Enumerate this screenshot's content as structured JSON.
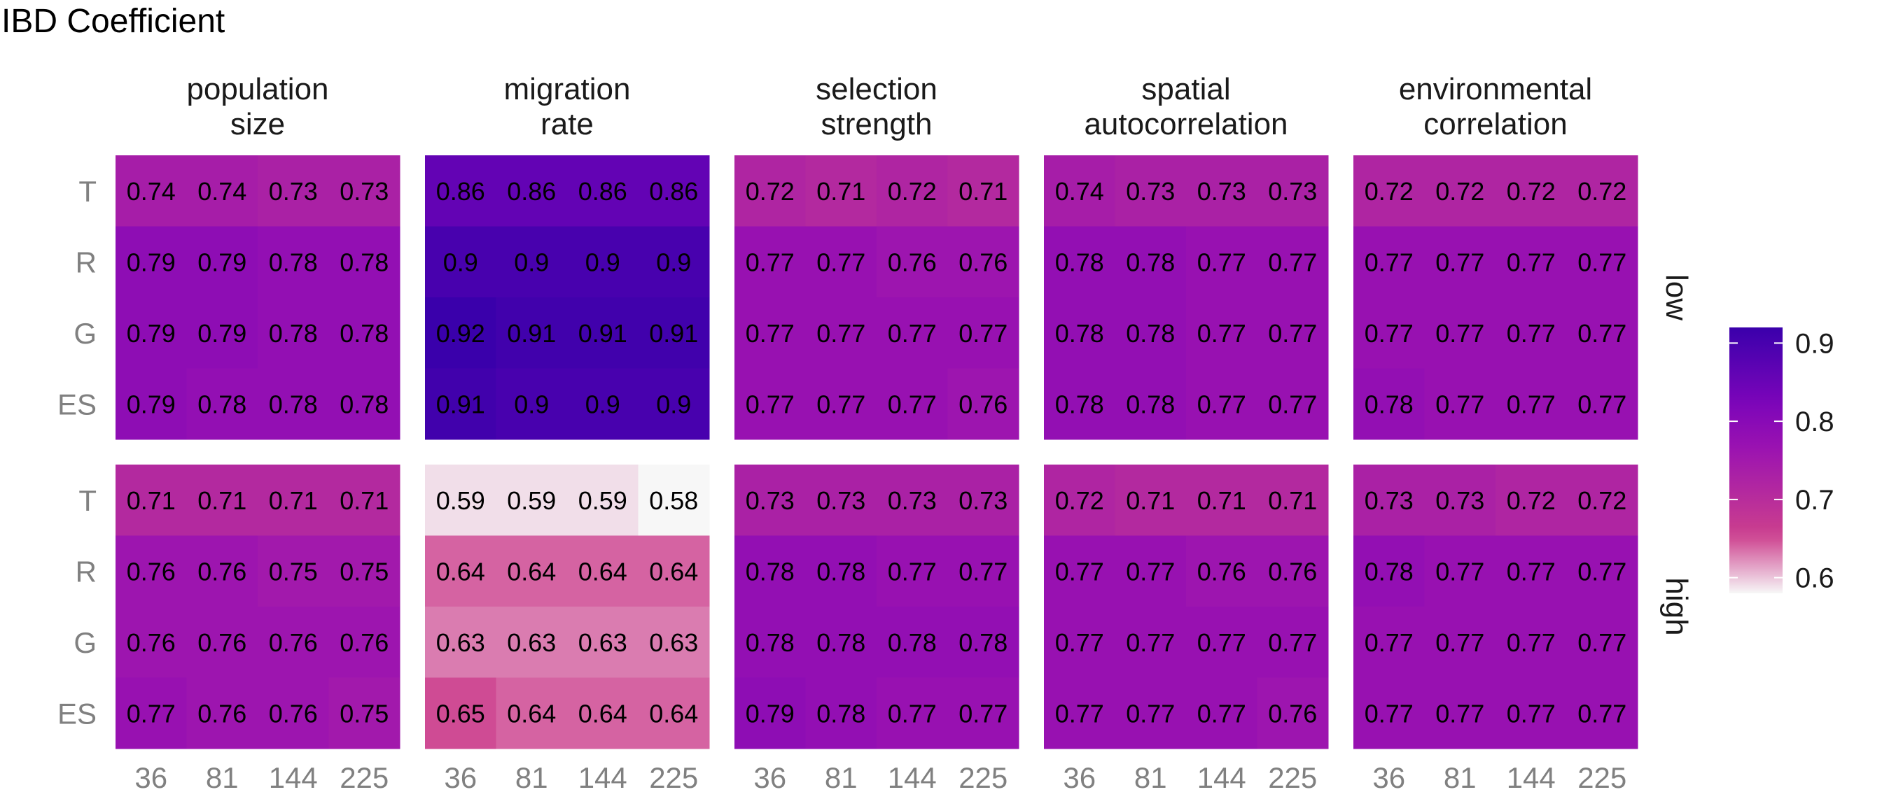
{
  "chart_data": {
    "type": "heatmap",
    "title": "IBD Coefficient",
    "column_facets": [
      [
        "population",
        "size"
      ],
      [
        "migration",
        "rate"
      ],
      [
        "selection",
        "strength"
      ],
      [
        "spatial",
        "autocorrelation"
      ],
      [
        "environmental",
        "correlation"
      ]
    ],
    "row_facets": [
      "low",
      "high"
    ],
    "x_categories": [
      "36",
      "81",
      "144",
      "225"
    ],
    "y_categories": [
      "T",
      "R",
      "G",
      "ES"
    ],
    "color_scale": {
      "min": 0.58,
      "max": 0.92,
      "ticks": [
        0.9,
        0.8,
        0.7,
        0.6
      ],
      "tick_labels": [
        "0.9",
        "0.8",
        "0.7",
        "0.6"
      ],
      "colors": [
        "#f7f7f7",
        "#cc3f8d",
        "#9a12b1",
        "#7b05b9",
        "#3a00ab"
      ]
    },
    "panels": [
      [
        {
          "values": [
            [
              0.74,
              0.74,
              0.73,
              0.73
            ],
            [
              0.79,
              0.79,
              0.78,
              0.78
            ],
            [
              0.79,
              0.79,
              0.78,
              0.78
            ],
            [
              0.79,
              0.78,
              0.78,
              0.78
            ]
          ],
          "labels": [
            [
              "0.74",
              "0.74",
              "0.73",
              "0.73"
            ],
            [
              "0.79",
              "0.79",
              "0.78",
              "0.78"
            ],
            [
              "0.79",
              "0.79",
              "0.78",
              "0.78"
            ],
            [
              "0.79",
              "0.78",
              "0.78",
              "0.78"
            ]
          ]
        },
        {
          "values": [
            [
              0.86,
              0.86,
              0.86,
              0.86
            ],
            [
              0.9,
              0.9,
              0.9,
              0.9
            ],
            [
              0.92,
              0.91,
              0.91,
              0.91
            ],
            [
              0.91,
              0.9,
              0.9,
              0.9
            ]
          ],
          "labels": [
            [
              "0.86",
              "0.86",
              "0.86",
              "0.86"
            ],
            [
              "0.9",
              "0.9",
              "0.9",
              "0.9"
            ],
            [
              "0.92",
              "0.91",
              "0.91",
              "0.91"
            ],
            [
              "0.91",
              "0.9",
              "0.9",
              "0.9"
            ]
          ]
        },
        {
          "values": [
            [
              0.72,
              0.71,
              0.72,
              0.71
            ],
            [
              0.77,
              0.77,
              0.76,
              0.76
            ],
            [
              0.77,
              0.77,
              0.77,
              0.77
            ],
            [
              0.77,
              0.77,
              0.77,
              0.76
            ]
          ],
          "labels": [
            [
              "0.72",
              "0.71",
              "0.72",
              "0.71"
            ],
            [
              "0.77",
              "0.77",
              "0.76",
              "0.76"
            ],
            [
              "0.77",
              "0.77",
              "0.77",
              "0.77"
            ],
            [
              "0.77",
              "0.77",
              "0.77",
              "0.76"
            ]
          ]
        },
        {
          "values": [
            [
              0.74,
              0.73,
              0.73,
              0.73
            ],
            [
              0.78,
              0.78,
              0.77,
              0.77
            ],
            [
              0.78,
              0.78,
              0.77,
              0.77
            ],
            [
              0.78,
              0.78,
              0.77,
              0.77
            ]
          ],
          "labels": [
            [
              "0.74",
              "0.73",
              "0.73",
              "0.73"
            ],
            [
              "0.78",
              "0.78",
              "0.77",
              "0.77"
            ],
            [
              "0.78",
              "0.78",
              "0.77",
              "0.77"
            ],
            [
              "0.78",
              "0.78",
              "0.77",
              "0.77"
            ]
          ]
        },
        {
          "values": [
            [
              0.72,
              0.72,
              0.72,
              0.72
            ],
            [
              0.77,
              0.77,
              0.77,
              0.77
            ],
            [
              0.77,
              0.77,
              0.77,
              0.77
            ],
            [
              0.78,
              0.77,
              0.77,
              0.77
            ]
          ],
          "labels": [
            [
              "0.72",
              "0.72",
              "0.72",
              "0.72"
            ],
            [
              "0.77",
              "0.77",
              "0.77",
              "0.77"
            ],
            [
              "0.77",
              "0.77",
              "0.77",
              "0.77"
            ],
            [
              "0.78",
              "0.77",
              "0.77",
              "0.77"
            ]
          ]
        }
      ],
      [
        {
          "values": [
            [
              0.71,
              0.71,
              0.71,
              0.71
            ],
            [
              0.76,
              0.76,
              0.75,
              0.75
            ],
            [
              0.76,
              0.76,
              0.76,
              0.76
            ],
            [
              0.77,
              0.76,
              0.76,
              0.75
            ]
          ],
          "labels": [
            [
              "0.71",
              "0.71",
              "0.71",
              "0.71"
            ],
            [
              "0.76",
              "0.76",
              "0.75",
              "0.75"
            ],
            [
              "0.76",
              "0.76",
              "0.76",
              "0.76"
            ],
            [
              "0.77",
              "0.76",
              "0.76",
              "0.75"
            ]
          ]
        },
        {
          "values": [
            [
              0.59,
              0.59,
              0.59,
              0.58
            ],
            [
              0.64,
              0.64,
              0.64,
              0.64
            ],
            [
              0.63,
              0.63,
              0.63,
              0.63
            ],
            [
              0.65,
              0.64,
              0.64,
              0.64
            ]
          ],
          "labels": [
            [
              "0.59",
              "0.59",
              "0.59",
              "0.58"
            ],
            [
              "0.64",
              "0.64",
              "0.64",
              "0.64"
            ],
            [
              "0.63",
              "0.63",
              "0.63",
              "0.63"
            ],
            [
              "0.65",
              "0.64",
              "0.64",
              "0.64"
            ]
          ]
        },
        {
          "values": [
            [
              0.73,
              0.73,
              0.73,
              0.73
            ],
            [
              0.78,
              0.78,
              0.77,
              0.77
            ],
            [
              0.78,
              0.78,
              0.78,
              0.78
            ],
            [
              0.79,
              0.78,
              0.77,
              0.77
            ]
          ],
          "labels": [
            [
              "0.73",
              "0.73",
              "0.73",
              "0.73"
            ],
            [
              "0.78",
              "0.78",
              "0.77",
              "0.77"
            ],
            [
              "0.78",
              "0.78",
              "0.78",
              "0.78"
            ],
            [
              "0.79",
              "0.78",
              "0.77",
              "0.77"
            ]
          ]
        },
        {
          "values": [
            [
              0.72,
              0.71,
              0.71,
              0.71
            ],
            [
              0.77,
              0.77,
              0.76,
              0.76
            ],
            [
              0.77,
              0.77,
              0.77,
              0.77
            ],
            [
              0.77,
              0.77,
              0.77,
              0.76
            ]
          ],
          "labels": [
            [
              "0.72",
              "0.71",
              "0.71",
              "0.71"
            ],
            [
              "0.77",
              "0.77",
              "0.76",
              "0.76"
            ],
            [
              "0.77",
              "0.77",
              "0.77",
              "0.77"
            ],
            [
              "0.77",
              "0.77",
              "0.77",
              "0.76"
            ]
          ]
        },
        {
          "values": [
            [
              0.73,
              0.73,
              0.72,
              0.72
            ],
            [
              0.78,
              0.77,
              0.77,
              0.77
            ],
            [
              0.77,
              0.77,
              0.77,
              0.77
            ],
            [
              0.77,
              0.77,
              0.77,
              0.77
            ]
          ],
          "labels": [
            [
              "0.73",
              "0.73",
              "0.72",
              "0.72"
            ],
            [
              "0.78",
              "0.77",
              "0.77",
              "0.77"
            ],
            [
              "0.77",
              "0.77",
              "0.77",
              "0.77"
            ],
            [
              "0.77",
              "0.77",
              "0.77",
              "0.77"
            ]
          ]
        }
      ]
    ]
  }
}
